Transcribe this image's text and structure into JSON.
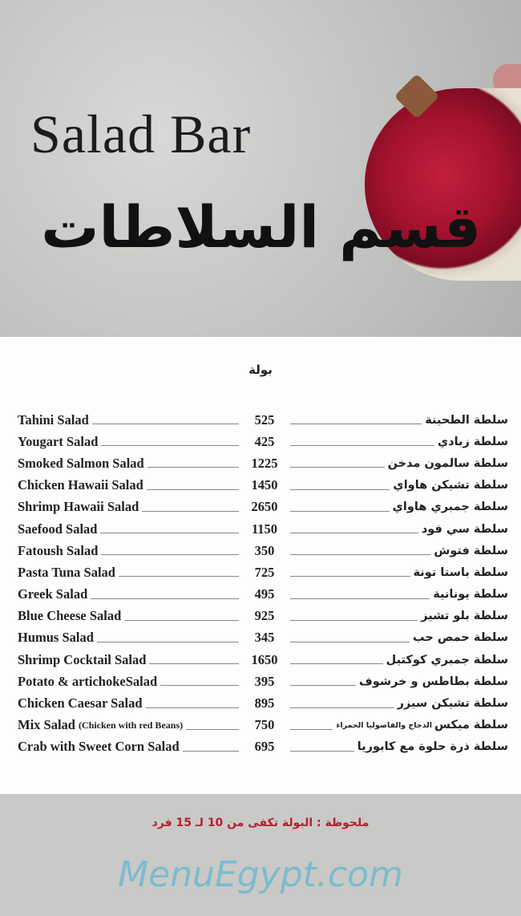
{
  "header": {
    "title_en": "Salad Bar",
    "title_ar": "قسم السلاطات"
  },
  "section": "بولة",
  "watermark": "MenuEgypt.com",
  "items": [
    {
      "en": "Tahini Salad",
      "price": "525",
      "ar": "سلطة الطحينة"
    },
    {
      "en": "Yougart Salad",
      "price": "425",
      "ar": "سلطة زبادي"
    },
    {
      "en": "Smoked Salmon Salad",
      "price": "1225",
      "ar": "سلطة سالمون مدخن"
    },
    {
      "en": "Chicken Hawaii Salad",
      "price": "1450",
      "ar": "سلطة تشيكن هاواي"
    },
    {
      "en": "Shrimp Hawaii Salad",
      "price": "2650",
      "ar": "سلطة جمبري هاواي"
    },
    {
      "en": "Saefood Salad",
      "price": "1150",
      "ar": "سلطة سي فود"
    },
    {
      "en": "Fatoush Salad",
      "price": "350",
      "ar": "سلطة فتوش"
    },
    {
      "en": "Pasta Tuna Salad",
      "price": "725",
      "ar": "سلطة باستا تونة"
    },
    {
      "en": "Greek Salad",
      "price": "495",
      "ar": "سلطة يونانية"
    },
    {
      "en": "Blue Cheese Salad",
      "price": "925",
      "ar": "سلطة بلو تشيز"
    },
    {
      "en": "Humus Salad",
      "price": "345",
      "ar": "سلطة حمص حب"
    },
    {
      "en": "Shrimp Cocktail Salad",
      "price": "1650",
      "ar": "سلطة جمبري كوكتيل"
    },
    {
      "en": "Potato & artichokeSalad",
      "price": "395",
      "ar": "سلطة بطاطس و خرشوف"
    },
    {
      "en": "Chicken Caesar Salad",
      "price": "895",
      "ar": "سلطة تشيكن  سيزر"
    },
    {
      "en": "Mix Salad",
      "en_note": "(Chicken with red Beans)",
      "price": "750",
      "ar": "سلطة ميكس",
      "ar_note": "الدجاج والفاصوليا الحمراء"
    },
    {
      "en": "Crab with Sweet Corn Salad",
      "price": "695",
      "ar": "سلطة ذرة حلوة مع كابوريا"
    }
  ],
  "note": "ملحوظة : البولة تكفى من 10 لـ 15 فرد",
  "colors": {
    "note": "#b5202c",
    "panel": "#fdfdfd",
    "background": "#c9c9c7"
  }
}
